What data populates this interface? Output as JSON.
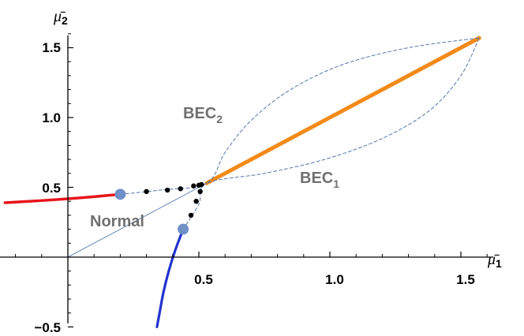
{
  "chart_data": {
    "type": "line",
    "xlabel": "μ̄",
    "xlabel_sub": "1",
    "ylabel": "μ̄",
    "ylabel_sub": "2",
    "xlim": [
      -0.2,
      1.6
    ],
    "ylim": [
      -0.5,
      1.6
    ],
    "x_ticks": [
      0.5,
      1.0,
      1.5
    ],
    "x_tick_labels": [
      "0.5",
      "1.0",
      "1.5"
    ],
    "y_ticks": [
      -0.5,
      0.5,
      1.0,
      1.5
    ],
    "y_tick_labels": [
      "−0.5",
      "0.5",
      "1.0",
      "1.5"
    ],
    "grid": false,
    "colors": {
      "red": "#e8151b",
      "blue": "#2233d0",
      "orange": "#f28a18",
      "dash": "#5577aa",
      "diag": "#6688bb",
      "point": "#7090c8",
      "dot": "#000000",
      "label": "#707070"
    },
    "series": [
      {
        "kind": "solid-red",
        "points": [
          [
            -0.24,
            0.39
          ],
          [
            -0.1,
            0.405
          ],
          [
            0.05,
            0.425
          ],
          [
            0.2,
            0.45
          ]
        ]
      },
      {
        "kind": "solid-blue",
        "points": [
          [
            0.44,
            0.2
          ],
          [
            0.41,
            0.05
          ],
          [
            0.385,
            -0.1
          ],
          [
            0.365,
            -0.25
          ],
          [
            0.35,
            -0.4
          ],
          [
            0.34,
            -0.5
          ]
        ]
      },
      {
        "kind": "solid-orange",
        "points": [
          [
            0.53,
            0.53
          ],
          [
            1.57,
            1.57
          ]
        ]
      },
      {
        "kind": "thin-diagonal",
        "points": [
          [
            0.0,
            0.0
          ],
          [
            0.53,
            0.53
          ]
        ]
      },
      {
        "kind": "dashed-upper",
        "points": [
          [
            0.2,
            0.45
          ],
          [
            0.35,
            0.48
          ],
          [
            0.53,
            0.53
          ],
          [
            0.6,
            0.75
          ],
          [
            0.7,
            0.98
          ],
          [
            0.85,
            1.2
          ],
          [
            1.05,
            1.38
          ],
          [
            1.3,
            1.5
          ],
          [
            1.57,
            1.57
          ]
        ]
      },
      {
        "kind": "dashed-lower",
        "points": [
          [
            0.44,
            0.2
          ],
          [
            0.5,
            0.38
          ],
          [
            0.53,
            0.53
          ],
          [
            0.75,
            0.6
          ],
          [
            0.98,
            0.7
          ],
          [
            1.2,
            0.85
          ],
          [
            1.38,
            1.05
          ],
          [
            1.5,
            1.3
          ],
          [
            1.57,
            1.57
          ]
        ]
      },
      {
        "kind": "dots",
        "points": [
          [
            0.3,
            0.47
          ],
          [
            0.38,
            0.48
          ],
          [
            0.43,
            0.49
          ],
          [
            0.48,
            0.51
          ],
          [
            0.5,
            0.515
          ],
          [
            0.51,
            0.52
          ],
          [
            0.505,
            0.47
          ],
          [
            0.49,
            0.4
          ],
          [
            0.47,
            0.3
          ]
        ]
      },
      {
        "kind": "big-points",
        "points": [
          [
            0.2,
            0.45
          ],
          [
            0.44,
            0.2
          ]
        ]
      }
    ],
    "annotations": [
      {
        "key": "bec2",
        "text": "BEC",
        "sub": "2",
        "x": 0.42,
        "y": 0.9
      },
      {
        "key": "bec1",
        "text": "BEC",
        "sub": "1",
        "x": 0.85,
        "y": 0.53
      },
      {
        "key": "normal",
        "text": "Normal",
        "x": 0.1,
        "y": 0.26
      }
    ]
  }
}
